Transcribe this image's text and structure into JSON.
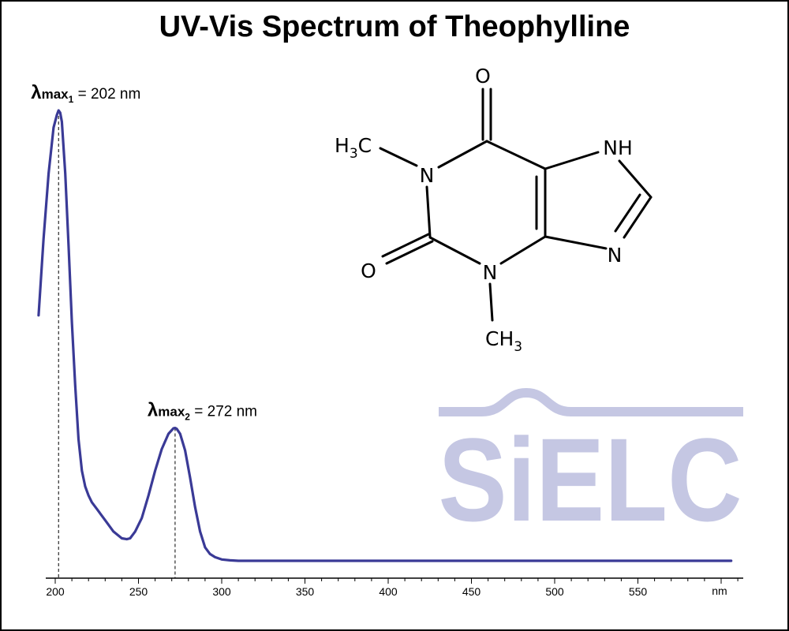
{
  "chart_data": {
    "type": "line",
    "title": "UV-Vis Spectrum of Theophylline",
    "xlabel": "nm",
    "ylabel": "",
    "xlim": [
      190,
      1000
    ],
    "ylim": [
      0,
      1
    ],
    "x_ticks": [
      200,
      250,
      300,
      350,
      400,
      450,
      500,
      550
    ],
    "x_tick_labels": [
      "200",
      "250",
      "300",
      "350",
      "400",
      "450",
      "500",
      "550"
    ],
    "grid": false,
    "series": [
      {
        "color": "#3a3a96",
        "x": [
          190,
          193,
          196,
          199,
          201,
          202,
          203,
          204,
          206,
          208,
          210,
          212,
          214,
          216,
          218,
          220,
          222,
          225,
          230,
          235,
          240,
          243,
          245,
          248,
          252,
          256,
          260,
          264,
          268,
          271,
          272,
          273,
          275,
          278,
          281,
          284,
          287,
          290,
          293,
          296,
          300,
          305,
          310,
          400,
          500,
          600,
          606
        ],
        "y": [
          0.545,
          0.715,
          0.86,
          0.962,
          0.99,
          1.0,
          0.995,
          0.975,
          0.86,
          0.7,
          0.53,
          0.39,
          0.27,
          0.2,
          0.165,
          0.145,
          0.13,
          0.115,
          0.09,
          0.065,
          0.05,
          0.048,
          0.05,
          0.065,
          0.095,
          0.145,
          0.2,
          0.248,
          0.282,
          0.294,
          0.295,
          0.293,
          0.282,
          0.245,
          0.185,
          0.12,
          0.065,
          0.03,
          0.015,
          0.008,
          0.003,
          0.001,
          0.0,
          0.0,
          0.0,
          0.0,
          0.0
        ]
      }
    ],
    "annotations": [
      {
        "prefix": "λ",
        "sub": "max",
        "index": "1",
        "text": " = 202 nm",
        "x": 202,
        "y": 1.0
      },
      {
        "prefix": "λ",
        "sub": "max",
        "index": "2",
        "text": " = 272 nm",
        "x": 272,
        "y": 0.295
      }
    ]
  },
  "molecule": {
    "atom_O_top": "O",
    "atom_O_left": "O",
    "atom_N1": "N",
    "atom_N3": "N",
    "atom_NH": "NH",
    "atom_N9": "N",
    "methyl_left_H": "H",
    "methyl_left_sub": "3",
    "methyl_left_C": "C",
    "methyl_bottom_CH": "CH",
    "methyl_bottom_sub": "3"
  },
  "watermark": {
    "text": "SiELC",
    "color": "#c5c7e3"
  }
}
